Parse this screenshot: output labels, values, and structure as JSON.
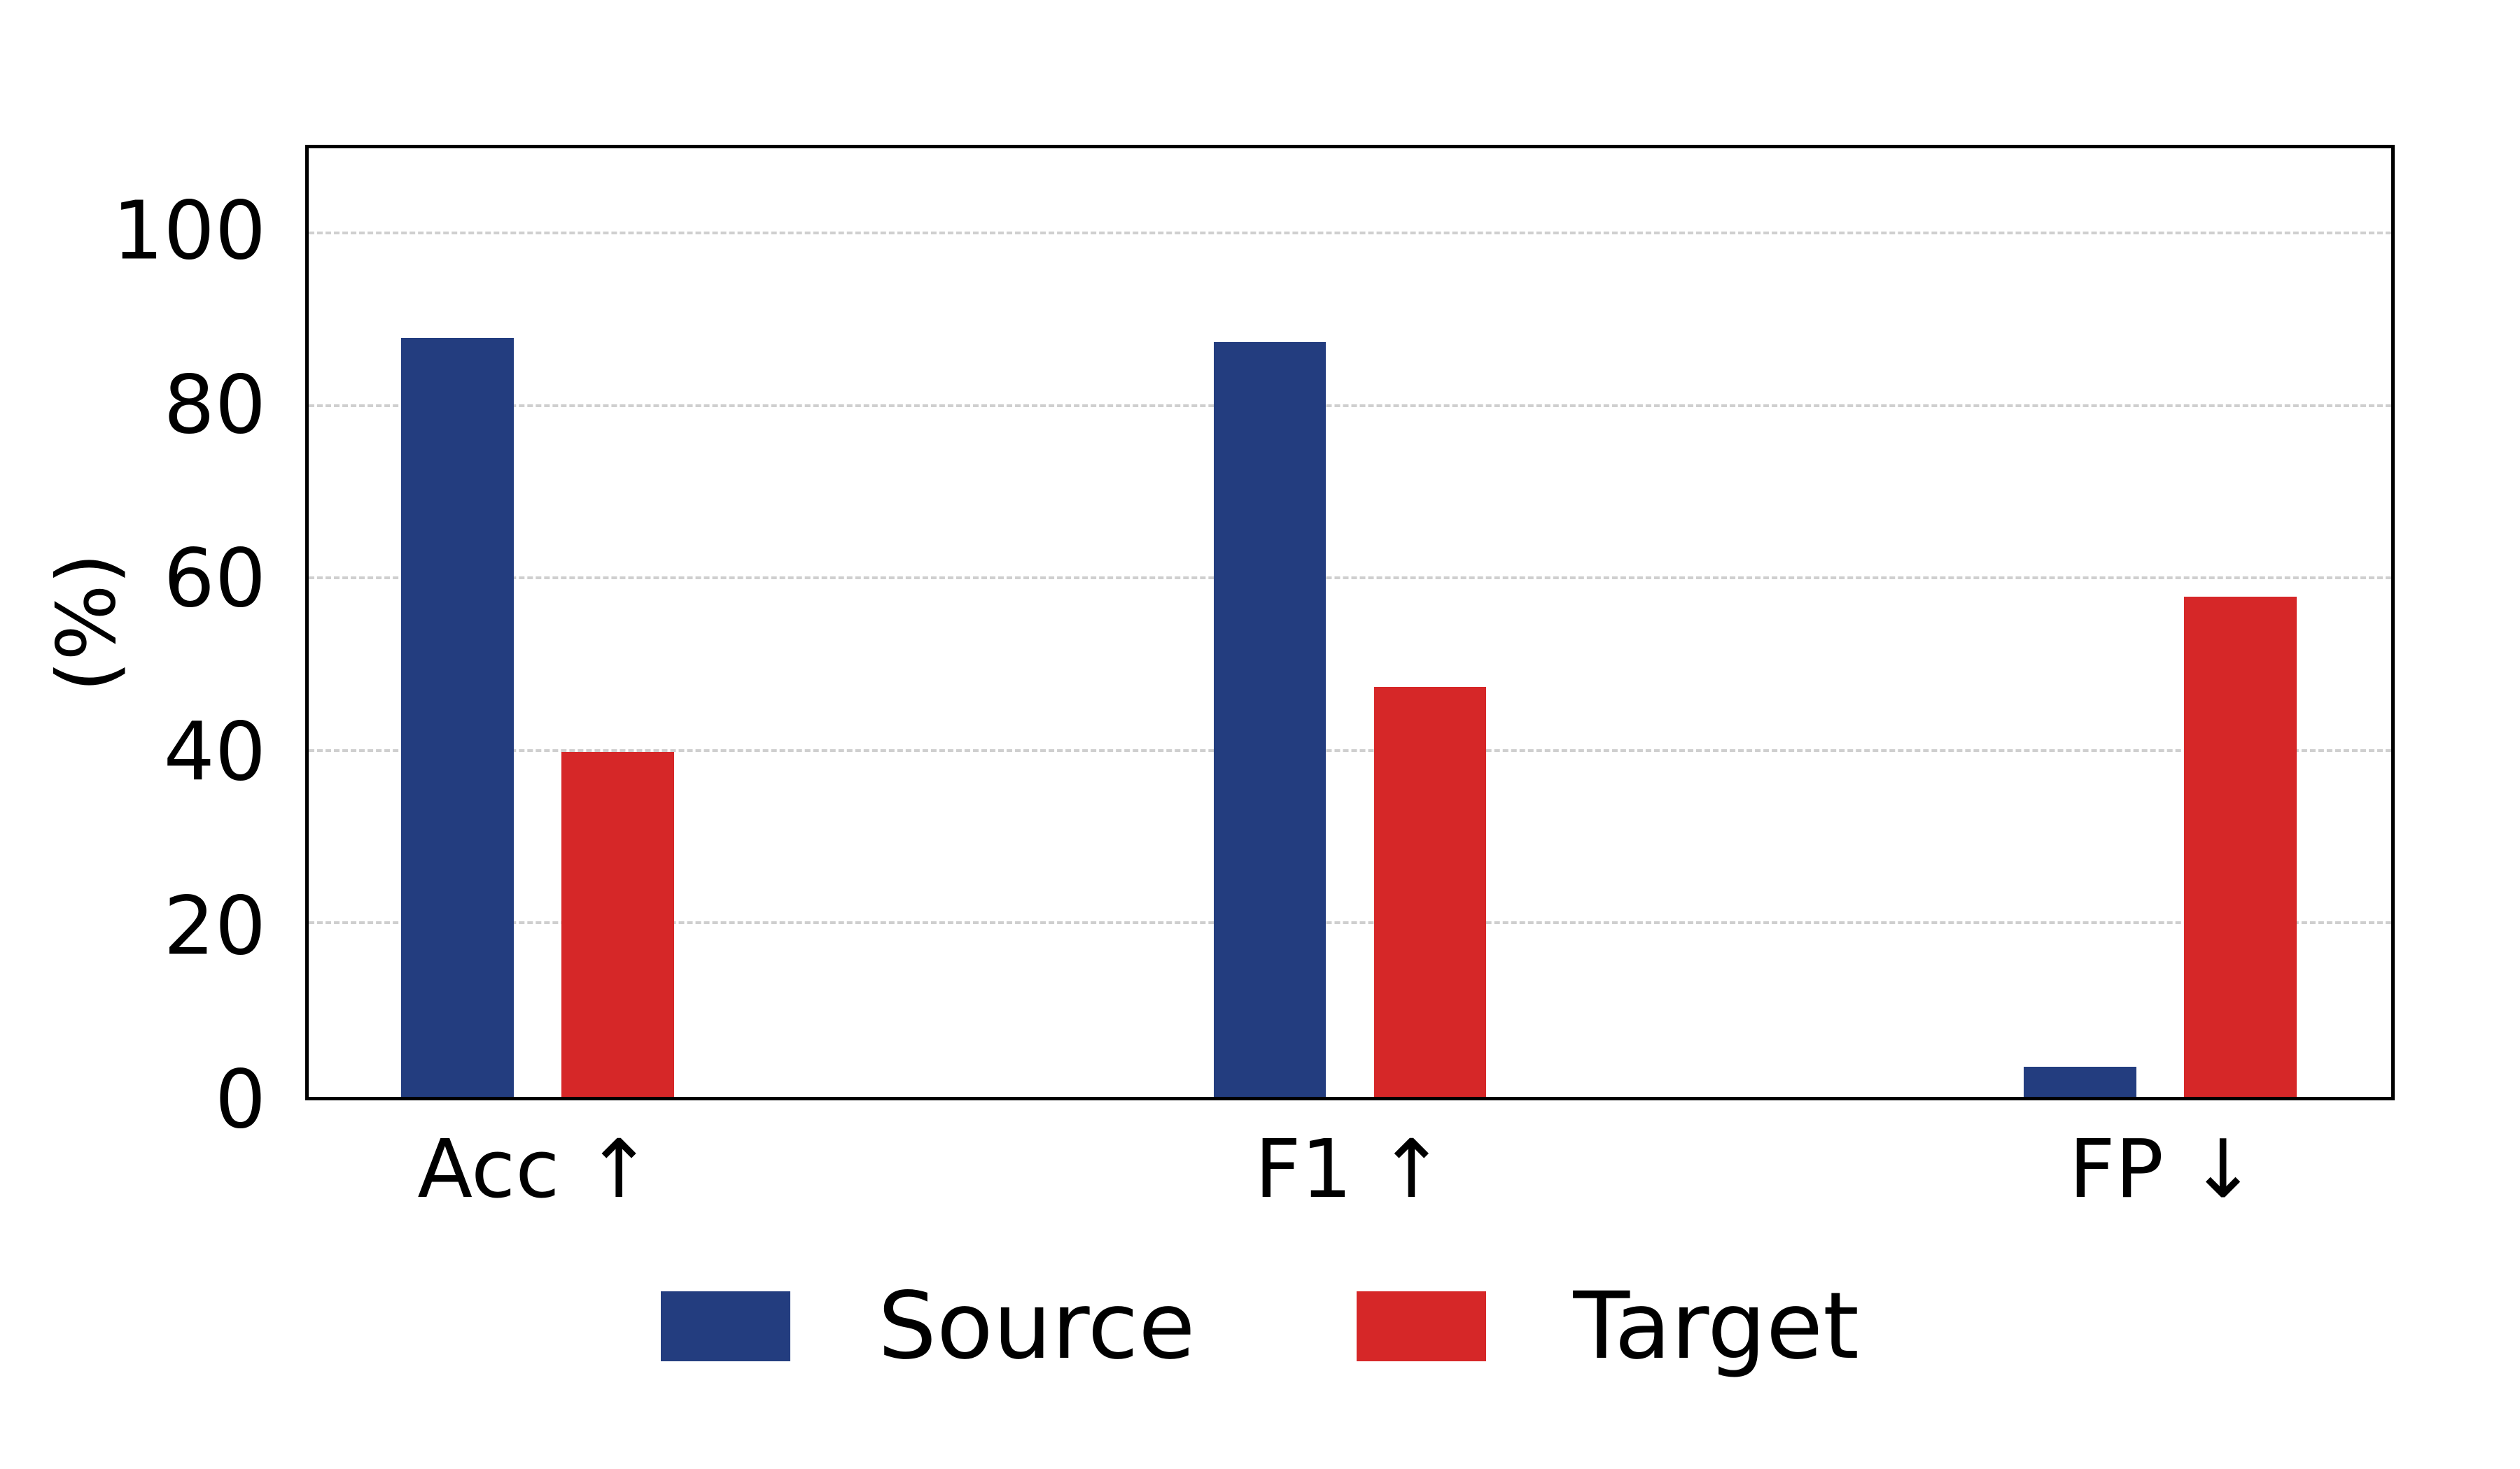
{
  "chart_data": {
    "type": "bar",
    "categories": [
      "Acc ↑",
      "F1 ↑",
      "FP ↓"
    ],
    "series": [
      {
        "name": "Source",
        "color": "#233d7f",
        "values": [
          88,
          87.5,
          3.5
        ]
      },
      {
        "name": "Target",
        "color": "#d62728",
        "values": [
          40,
          47.5,
          58
        ]
      }
    ],
    "title": "",
    "xlabel": "",
    "ylabel": "(%)",
    "yticks": [
      0,
      20,
      40,
      60,
      80,
      100
    ],
    "ylim": [
      0,
      110
    ],
    "grid": "horizontal-dashed",
    "legend_position": "bottom",
    "group_centers": [
      0.11,
      0.5,
      0.889
    ],
    "bar_width": 0.054,
    "bar_offset": 0.077
  }
}
